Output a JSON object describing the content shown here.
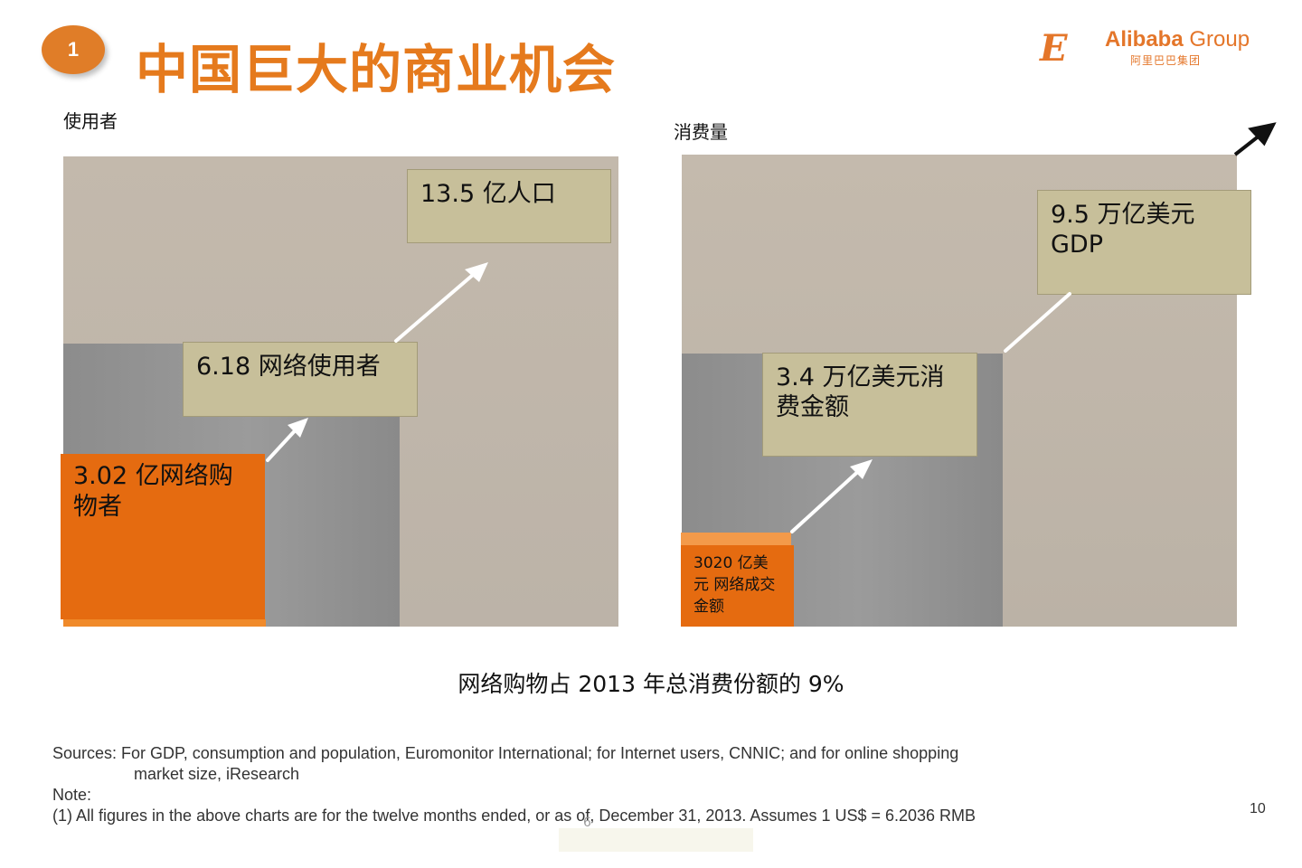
{
  "header": {
    "badge_number": "1",
    "title": "中国巨大的商业机会",
    "logo": {
      "brand": "Alibaba",
      "group": "Group",
      "subtitle": "阿里巴巴集团"
    }
  },
  "left_panel": {
    "label": "使用者",
    "top_box": "13.5 亿人口",
    "middle_box": "6.18 网络使用者",
    "bottom_box": "3.02 亿网络购物者"
  },
  "right_panel": {
    "label": "消费量",
    "top_box": "9.5 万亿美元 GDP",
    "middle_box": "3.4 万亿美元消费金额",
    "bottom_box": "3020 亿美元 网络成交金额"
  },
  "caption": "网络购物占 2013 年总消费份额的 9%",
  "footer": {
    "sources_line1": "Sources: For GDP, consumption and population, Euromonitor International; for Internet users, CNNIC; and for online shopping",
    "sources_line2": "market size, iResearch",
    "note_label": "Note:",
    "note_text": "(1) All figures  in the above charts are for the twelve months ended, or as of, December 31, 2013. Assumes 1 US$ = 6.2036 RMB"
  },
  "page_number": "10",
  "slide_marker": "6",
  "colors": {
    "accent": "#e57a1d",
    "box": "#c7bf9a",
    "orange_box": "#e56b10"
  }
}
